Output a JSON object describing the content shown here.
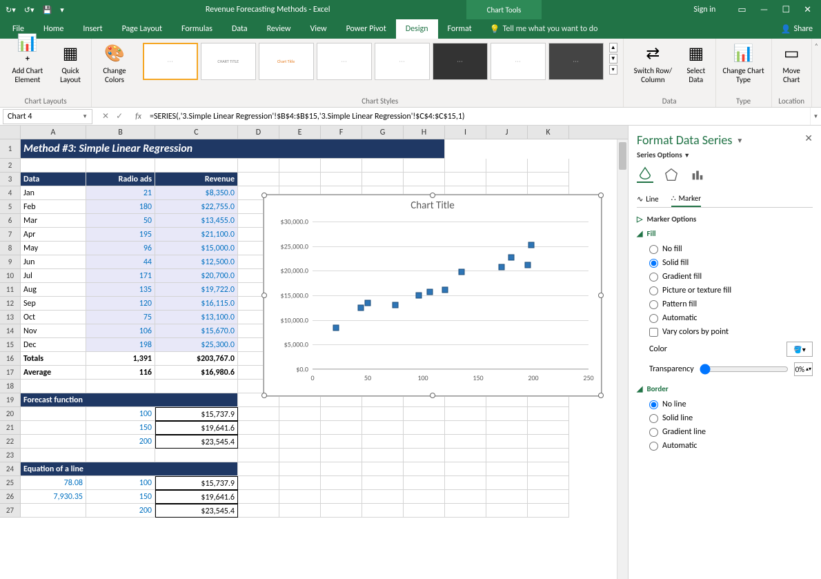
{
  "titlebar": {
    "doc_title": "Revenue Forecasting Methods  -  Excel",
    "chart_tools": "Chart Tools",
    "sign_in": "Sign in"
  },
  "tabs": {
    "file": "File",
    "home": "Home",
    "insert": "Insert",
    "page_layout": "Page Layout",
    "formulas": "Formulas",
    "data": "Data",
    "review": "Review",
    "view": "View",
    "power_pivot": "Power Pivot",
    "design": "Design",
    "format": "Format",
    "tellme": "Tell me what you want to do",
    "share": "Share"
  },
  "ribbon": {
    "add_chart_element": "Add Chart Element",
    "quick_layout": "Quick Layout",
    "change_colors": "Change Colors",
    "chart_layouts": "Chart Layouts",
    "chart_styles": "Chart Styles",
    "switch_row_col": "Switch Row/ Column",
    "select_data": "Select Data",
    "change_chart_type": "Change Chart Type",
    "move_chart": "Move Chart",
    "data": "Data",
    "type": "Type",
    "location": "Location"
  },
  "namebox": "Chart 4",
  "formula": "=SERIES(,'3.Simple Linear Regression'!$B$4:$B$15,'3.Simple Linear Regression'!$C$4:$C$15,1)",
  "columns": [
    {
      "l": "A",
      "w": 95
    },
    {
      "l": "B",
      "w": 100
    },
    {
      "l": "C",
      "w": 120
    },
    {
      "l": "D",
      "w": 60
    },
    {
      "l": "E",
      "w": 60
    },
    {
      "l": "F",
      "w": 60
    },
    {
      "l": "G",
      "w": 60
    },
    {
      "l": "H",
      "w": 60
    },
    {
      "l": "I",
      "w": 60
    },
    {
      "l": "J",
      "w": 60
    },
    {
      "l": "K",
      "w": 60
    }
  ],
  "header_band": "Method #3: Simple Linear Regression",
  "tbl_headers": {
    "a": "Data",
    "b": "Radio ads",
    "c": "Revenue"
  },
  "rows": [
    {
      "a": "Jan",
      "b": "21",
      "c": "$8,350.0"
    },
    {
      "a": "Feb",
      "b": "180",
      "c": "$22,755.0"
    },
    {
      "a": "Mar",
      "b": "50",
      "c": "$13,455.0"
    },
    {
      "a": "Apr",
      "b": "195",
      "c": "$21,100.0"
    },
    {
      "a": "May",
      "b": "96",
      "c": "$15,000.0"
    },
    {
      "a": "Jun",
      "b": "44",
      "c": "$12,500.0"
    },
    {
      "a": "Jul",
      "b": "171",
      "c": "$20,700.0"
    },
    {
      "a": "Aug",
      "b": "135",
      "c": "$19,722.0"
    },
    {
      "a": "Sep",
      "b": "120",
      "c": "$16,115.0"
    },
    {
      "a": "Oct",
      "b": "75",
      "c": "$13,100.0"
    },
    {
      "a": "Nov",
      "b": "106",
      "c": "$15,670.0"
    },
    {
      "a": "Dec",
      "b": "198",
      "c": "$25,300.0"
    }
  ],
  "totals": {
    "label": "Totals",
    "b": "1,391",
    "c": "$203,767.0"
  },
  "average": {
    "label": "Average",
    "b": "116",
    "c": "$16,980.6"
  },
  "forecast_hdr": "Forecast function",
  "forecast_rows": [
    {
      "b": "100",
      "c": "$15,737.9"
    },
    {
      "b": "150",
      "c": "$19,641.6"
    },
    {
      "b": "200",
      "c": "$23,545.4"
    }
  ],
  "equation_hdr": "Equation of a line",
  "equation_rows": [
    {
      "a": "78.08",
      "b": "100",
      "c": "$15,737.9"
    },
    {
      "a": "7,930.35",
      "b": "150",
      "c": "$19,641.6"
    },
    {
      "a": "",
      "b": "200",
      "c": "$23,545.4"
    }
  ],
  "chart": {
    "title": "Chart Title",
    "xlim": [
      0,
      250
    ],
    "ylim": [
      0,
      30000
    ],
    "xticks": [
      0,
      50,
      100,
      150,
      200,
      250
    ],
    "yticks": [
      {
        "v": 0,
        "l": "$0.0"
      },
      {
        "v": 5000,
        "l": "$5,000.0"
      },
      {
        "v": 10000,
        "l": "$10,000.0"
      },
      {
        "v": 15000,
        "l": "$15,000.0"
      },
      {
        "v": 20000,
        "l": "$20,000.0"
      },
      {
        "v": 25000,
        "l": "$25,000.0"
      },
      {
        "v": 30000,
        "l": "$30,000.0"
      }
    ],
    "points": [
      [
        21,
        8350
      ],
      [
        180,
        22755
      ],
      [
        50,
        13455
      ],
      [
        195,
        21100
      ],
      [
        96,
        15000
      ],
      [
        44,
        12500
      ],
      [
        171,
        20700
      ],
      [
        135,
        19722
      ],
      [
        120,
        16115
      ],
      [
        75,
        13100
      ],
      [
        106,
        15670
      ],
      [
        198,
        25300
      ]
    ],
    "marker_color": "#2e75b6",
    "marker_border": "#1f4e79",
    "grid_color": "#d9d9d9",
    "bg": "#ffffff",
    "title_fontsize": 15,
    "tick_fontsize": 10
  },
  "pane": {
    "title": "Format Data Series",
    "subtitle": "Series Options",
    "tab_line": "Line",
    "tab_marker": "Marker",
    "marker_options": "Marker Options",
    "fill": "Fill",
    "fill_opts": {
      "no_fill": "No fill",
      "solid_fill": "Solid fill",
      "gradient_fill": "Gradient fill",
      "picture_fill": "Picture or texture fill",
      "pattern_fill": "Pattern fill",
      "automatic": "Automatic"
    },
    "vary_colors": "Vary colors by point",
    "color_label": "Color",
    "transparency_label": "Transparency",
    "transparency_val": "0%",
    "border": "Border",
    "border_opts": {
      "no_line": "No line",
      "solid_line": "Solid line",
      "gradient_line": "Gradient line",
      "automatic": "Automatic"
    }
  }
}
